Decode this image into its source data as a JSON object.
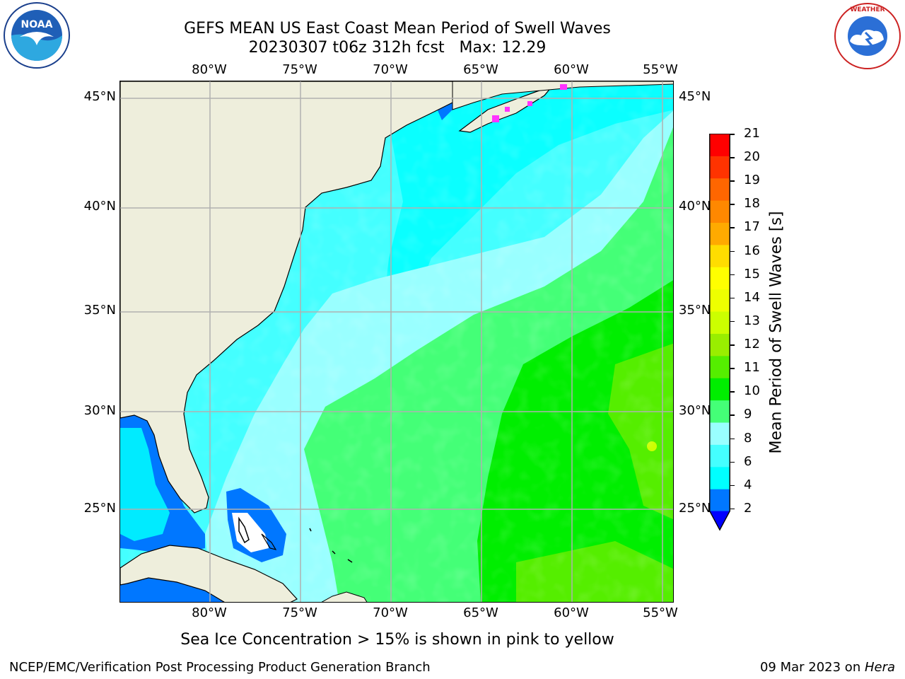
{
  "header": {
    "title_line1": "GEFS MEAN US East Coast Mean Period of Swell Waves",
    "title_line2": "20230307 t06z 312h fcst   Max: 12.29"
  },
  "logos": {
    "left": "noaa-logo",
    "left_text": "NOAA",
    "left_ring_text": "NATIONAL OCEANIC AND ATMOSPHERIC ADMINISTRATION · U.S. DEPARTMENT OF COMMERCE",
    "right": "national-weather-service-logo",
    "right_ring_text": "NATIONAL WEATHER SERVICE"
  },
  "map": {
    "lon_labels": [
      "80°W",
      "75°W",
      "70°W",
      "65°W",
      "60°W",
      "55°W"
    ],
    "lat_labels": [
      "45°N",
      "40°N",
      "35°N",
      "30°N",
      "25°N"
    ],
    "land_color": "#eeeedc",
    "ice_color": "#ff33ff",
    "grid": true
  },
  "colorbar": {
    "title": "Mean Period of Swell Waves [s]",
    "ticks": [
      "21",
      "20",
      "19",
      "18",
      "17",
      "16",
      "15",
      "14",
      "13",
      "12",
      "11",
      "10",
      "9",
      "8",
      "6",
      "4",
      "2"
    ],
    "colors_bottom_to_top": [
      "#0077ff",
      "#00ffff",
      "#44ffff",
      "#99ffff",
      "#44ff77",
      "#00ee00",
      "#55ee00",
      "#99ee00",
      "#ccff00",
      "#eeff00",
      "#ffff00",
      "#ffdd00",
      "#ffaa00",
      "#ff8800",
      "#ff6600",
      "#ff3300",
      "#ff0000"
    ],
    "under_color": "#0000ff"
  },
  "caption": "Sea Ice Concentration > 15% is shown in pink to yellow",
  "footer": {
    "left": "NCEP/EMC/Verification Post Processing Product Generation Branch",
    "right_date": "09 Mar 2023 on ",
    "right_host": "Hera"
  }
}
